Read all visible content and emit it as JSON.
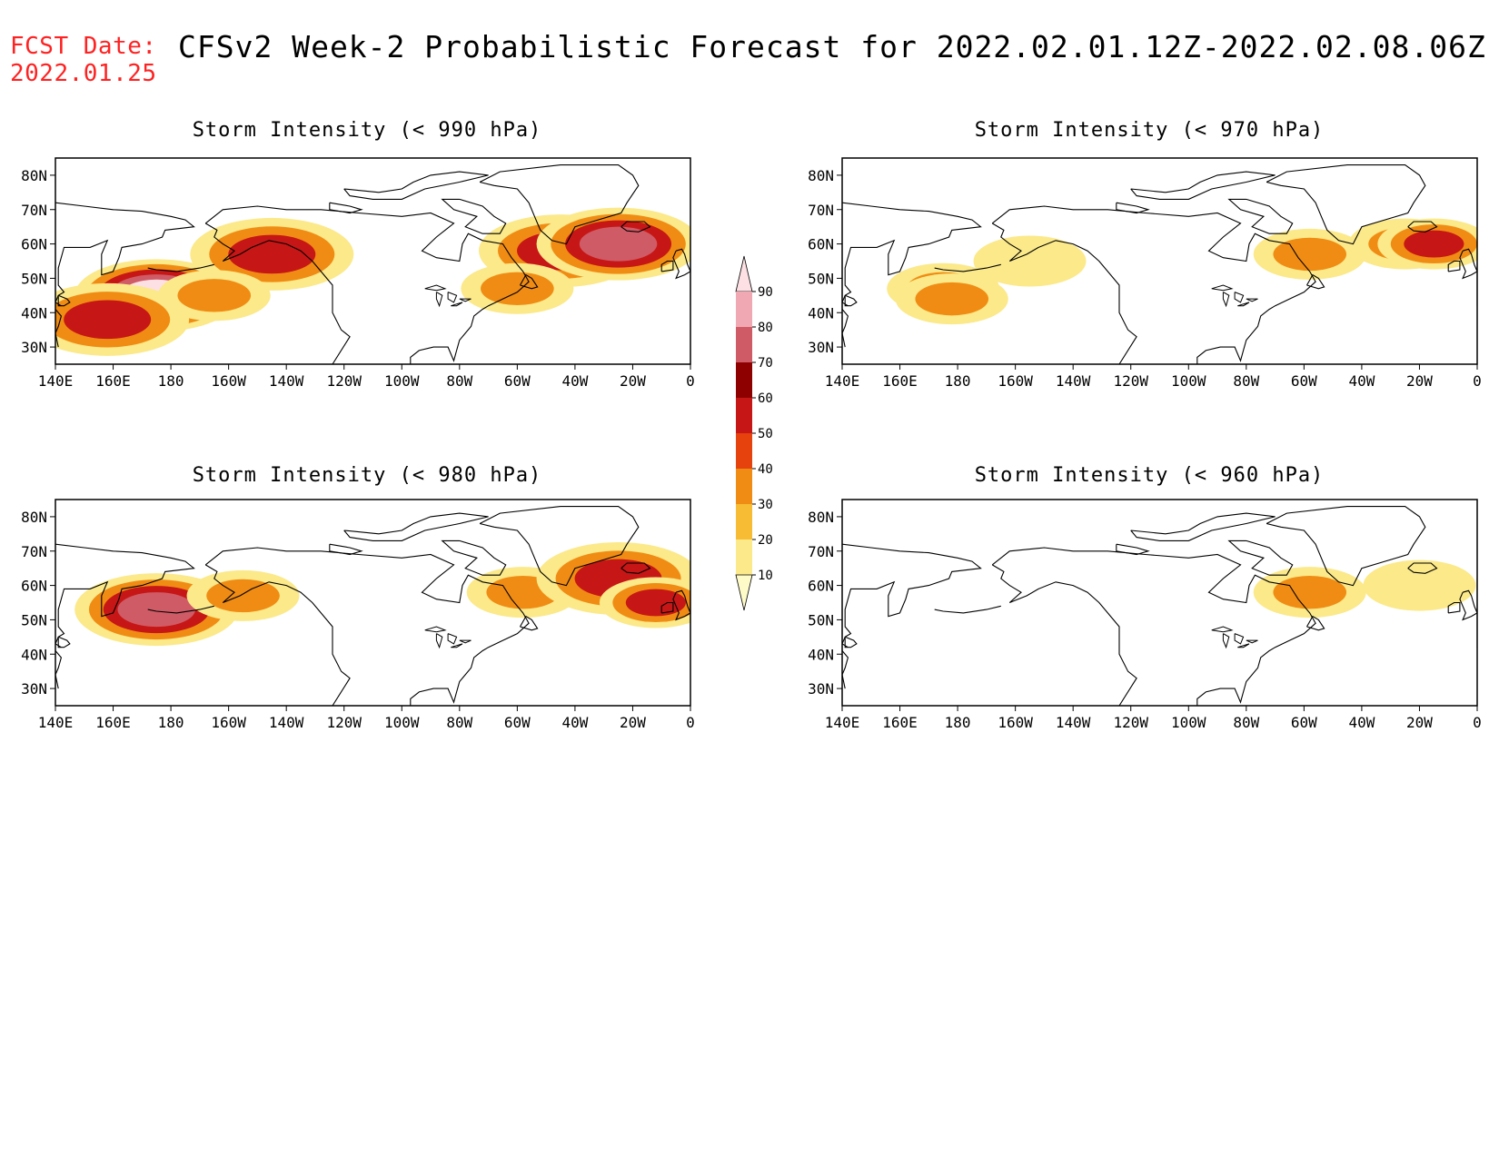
{
  "header": {
    "fcst_label": "FCST Date:",
    "fcst_date": "2022.01.25",
    "title": "CFSv2 Week-2 Probabilistic Forecast for 2022.02.01.12Z-2022.02.08.06Z"
  },
  "axes": {
    "lon_labels": [
      "140E",
      "160E",
      "180",
      "160W",
      "140W",
      "120W",
      "100W",
      "80W",
      "60W",
      "40W",
      "20W",
      "0"
    ],
    "lat_labels": [
      "80N",
      "70N",
      "60N",
      "50N",
      "40N",
      "30N"
    ]
  },
  "colorbar": {
    "levels": [
      10,
      20,
      30,
      40,
      50,
      60,
      70,
      80,
      90
    ],
    "colors": [
      "#fffbc8",
      "#fbe98a",
      "#f7bc33",
      "#f08c13",
      "#e6420e",
      "#c71616",
      "#8e0000",
      "#cf5b66",
      "#f0a8b3",
      "#fde0e4"
    ]
  },
  "panels": [
    {
      "id": "p990",
      "title": "Storm Intensity (< 990 hPa)"
    },
    {
      "id": "p970",
      "title": "Storm Intensity (< 970 hPa)"
    },
    {
      "id": "p980",
      "title": "Storm Intensity (< 980 hPa)"
    },
    {
      "id": "p960",
      "title": "Storm Intensity (< 960 hPa)"
    }
  ],
  "chart_data": [
    {
      "type": "heatmap",
      "title": "Storm Intensity (< 990 hPa)",
      "xlim": [
        "140E",
        "0"
      ],
      "ylim": [
        "25N",
        "85N"
      ],
      "regions": [
        {
          "lon": "175E",
          "lat": "45N",
          "value": 90
        },
        {
          "lon": "158E",
          "lat": "38N",
          "value": 60
        },
        {
          "lon": "145W",
          "lat": "57N",
          "value": 60
        },
        {
          "lon": "165W",
          "lat": "45N",
          "value": 40
        },
        {
          "lon": "45W",
          "lat": "58N",
          "value": 60
        },
        {
          "lon": "25W",
          "lat": "60N",
          "value": 80
        },
        {
          "lon": "60W",
          "lat": "47N",
          "value": 30
        }
      ]
    },
    {
      "type": "heatmap",
      "title": "Storm Intensity (< 970 hPa)",
      "xlim": [
        "140E",
        "0"
      ],
      "ylim": [
        "25N",
        "85N"
      ],
      "regions": [
        {
          "lon": "175E",
          "lat": "47N",
          "value": 30
        },
        {
          "lon": "178E",
          "lat": "44N",
          "value": 40
        },
        {
          "lon": "155W",
          "lat": "55N",
          "value": 20
        },
        {
          "lon": "58W",
          "lat": "57N",
          "value": 40
        },
        {
          "lon": "25W",
          "lat": "60N",
          "value": 30
        },
        {
          "lon": "15W",
          "lat": "60N",
          "value": 50
        }
      ]
    },
    {
      "type": "heatmap",
      "title": "Storm Intensity (< 980 hPa)",
      "xlim": [
        "140E",
        "0"
      ],
      "ylim": [
        "25N",
        "85N"
      ],
      "regions": [
        {
          "lon": "175E",
          "lat": "53N",
          "value": 80
        },
        {
          "lon": "155W",
          "lat": "57N",
          "value": 40
        },
        {
          "lon": "58W",
          "lat": "58N",
          "value": 40
        },
        {
          "lon": "25W",
          "lat": "62N",
          "value": 60
        },
        {
          "lon": "12W",
          "lat": "55N",
          "value": 50
        }
      ]
    },
    {
      "type": "heatmap",
      "title": "Storm Intensity (< 960 hPa)",
      "xlim": [
        "140E",
        "0"
      ],
      "ylim": [
        "25N",
        "85N"
      ],
      "regions": [
        {
          "lon": "58W",
          "lat": "58N",
          "value": 40
        },
        {
          "lon": "20W",
          "lat": "60N",
          "value": 20
        }
      ]
    }
  ]
}
